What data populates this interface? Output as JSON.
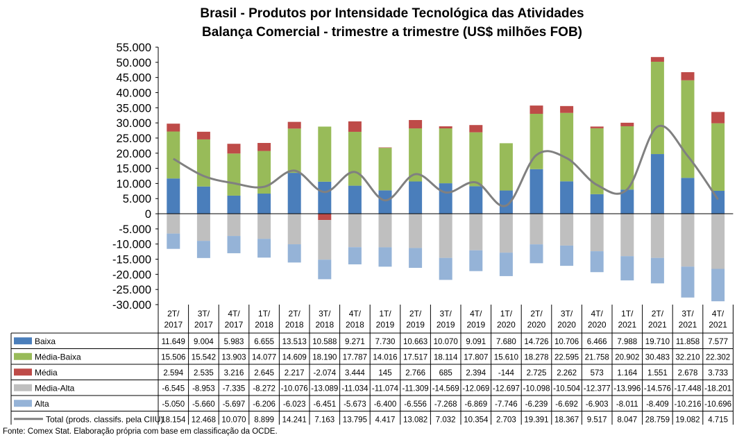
{
  "chart_data": {
    "type": "bar",
    "stacked": true,
    "title_lines": [
      "Brasil - Produtos por Intensidade Tecnológica das Atividades",
      "Balança Comercial - trimestre a trimestre (US$ milhões FOB)"
    ],
    "ylim": [
      -30000,
      55000
    ],
    "ytick_labels": [
      "55.000",
      "50.000",
      "45.000",
      "40.000",
      "35.000",
      "30.000",
      "25.000",
      "20.000",
      "15.000",
      "10.000",
      "5.000",
      "0",
      "-5.000",
      "-10.000",
      "-15.000",
      "-20.000",
      "-25.000",
      "-30.000"
    ],
    "categories": [
      "2T/2017",
      "3T/2017",
      "4T/2017",
      "1T/2018",
      "2T/2018",
      "3T/2018",
      "4T/2018",
      "1T/2019",
      "2T/2019",
      "3T/2019",
      "4T/2019",
      "1T/2020",
      "2T/2020",
      "3T/2020",
      "4T/2020",
      "1T/2021",
      "2T/2021",
      "3T/2021",
      "4T/2021"
    ],
    "series": [
      {
        "name": "Baixa",
        "color": "#4a7ebb",
        "values": [
          11649,
          9004,
          5983,
          6655,
          13513,
          10588,
          9271,
          7730,
          10663,
          10070,
          9091,
          7680,
          14726,
          10706,
          6466,
          7988,
          19710,
          11858,
          7577
        ],
        "labels": [
          "11.649",
          "9.004",
          "5.983",
          "6.655",
          "13.513",
          "10.588",
          "9.271",
          "7.730",
          "10.663",
          "10.070",
          "9.091",
          "7.680",
          "14.726",
          "10.706",
          "6.466",
          "7.988",
          "19.710",
          "11.858",
          "7.577"
        ]
      },
      {
        "name": "Média-Baixa",
        "color": "#98bb59",
        "values": [
          15506,
          15542,
          13903,
          14077,
          14609,
          18190,
          17787,
          14016,
          17517,
          18114,
          17807,
          15610,
          18278,
          22595,
          21758,
          20902,
          30483,
          32210,
          22302
        ],
        "labels": [
          "15.506",
          "15.542",
          "13.903",
          "14.077",
          "14.609",
          "18.190",
          "17.787",
          "14.016",
          "17.517",
          "18.114",
          "17.807",
          "15.610",
          "18.278",
          "22.595",
          "21.758",
          "20.902",
          "30.483",
          "32.210",
          "22.302"
        ]
      },
      {
        "name": "Média",
        "color": "#be4b48",
        "values": [
          2594,
          2535,
          3216,
          2645,
          2217,
          -2074,
          3444,
          145,
          2766,
          685,
          2394,
          -144,
          2725,
          2262,
          573,
          1164,
          1551,
          2678,
          3733
        ],
        "labels": [
          "2.594",
          "2.535",
          "3.216",
          "2.645",
          "2.217",
          "-2.074",
          "3.444",
          "145",
          "2.766",
          "685",
          "2.394",
          "-144",
          "2.725",
          "2.262",
          "573",
          "1.164",
          "1.551",
          "2.678",
          "3.733"
        ]
      },
      {
        "name": "Média-Alta",
        "color": "#bfbfbf",
        "values": [
          -6545,
          -8953,
          -7335,
          -8272,
          -10076,
          -13089,
          -11034,
          -11074,
          -11309,
          -14569,
          -12069,
          -12697,
          -10098,
          -10504,
          -12377,
          -13996,
          -14576,
          -17448,
          -18201
        ],
        "labels": [
          "-6.545",
          "-8.953",
          "-7.335",
          "-8.272",
          "-10.076",
          "-13.089",
          "-11.034",
          "-11.074",
          "-11.309",
          "-14.569",
          "-12.069",
          "-12.697",
          "-10.098",
          "-10.504",
          "-12.377",
          "-13.996",
          "-14.576",
          "-17.448",
          "-18.201"
        ]
      },
      {
        "name": "Alta",
        "color": "#95b3d7",
        "values": [
          -5050,
          -5660,
          -5697,
          -6206,
          -6023,
          -6451,
          -5673,
          -6400,
          -6556,
          -7268,
          -6869,
          -7746,
          -6239,
          -6692,
          -6903,
          -8011,
          -8409,
          -10216,
          -10696
        ],
        "labels": [
          "-5.050",
          "-5.660",
          "-5.697",
          "-6.206",
          "-6.023",
          "-6.451",
          "-5.673",
          "-6.400",
          "-6.556",
          "-7.268",
          "-6.869",
          "-7.746",
          "-6.239",
          "-6.692",
          "-6.903",
          "-8.011",
          "-8.409",
          "-10.216",
          "-10.696"
        ]
      },
      {
        "name": "Total (prods. classifs. pela CIIU)",
        "type": "line",
        "color": "#808080",
        "values": [
          18154,
          12468,
          10070,
          8899,
          14241,
          7163,
          13795,
          4417,
          13082,
          7032,
          10354,
          2703,
          19391,
          18367,
          9517,
          8047,
          28759,
          19082,
          4715
        ],
        "labels": [
          "18.154",
          "12.468",
          "10.070",
          "8.899",
          "14.241",
          "7.163",
          "13.795",
          "4.417",
          "13.082",
          "7.032",
          "10.354",
          "2.703",
          "19.391",
          "18.367",
          "9.517",
          "8.047",
          "28.759",
          "19.082",
          "4.715"
        ]
      }
    ],
    "legend_position": "table-left",
    "grid": false
  },
  "source": "Fonte: Comex Stat. Elaboração própria com base em classificação da OCDE."
}
